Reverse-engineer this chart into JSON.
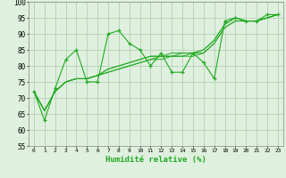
{
  "x": [
    0,
    1,
    2,
    3,
    4,
    5,
    6,
    7,
    8,
    9,
    10,
    11,
    12,
    13,
    14,
    15,
    16,
    17,
    18,
    19,
    20,
    21,
    22,
    23
  ],
  "line_main": [
    72,
    63,
    73,
    82,
    85,
    75,
    75,
    90,
    91,
    87,
    85,
    80,
    84,
    78,
    78,
    84,
    81,
    76,
    94,
    95,
    94,
    94,
    96,
    96
  ],
  "line_smooth1": [
    72,
    66,
    72,
    75,
    76,
    76,
    77,
    78,
    79,
    80,
    81,
    82,
    82,
    83,
    83,
    83,
    84,
    87,
    92,
    94,
    94,
    94,
    95,
    96
  ],
  "line_smooth2": [
    72,
    66,
    72,
    75,
    76,
    76,
    77,
    78,
    79,
    80,
    81,
    82,
    83,
    83,
    83,
    84,
    84,
    87,
    92,
    94,
    94,
    94,
    95,
    96
  ],
  "line_smooth3": [
    72,
    66,
    72,
    75,
    76,
    76,
    77,
    79,
    80,
    81,
    82,
    83,
    83,
    83,
    84,
    84,
    85,
    88,
    93,
    95,
    94,
    94,
    95,
    96
  ],
  "line_smooth4": [
    72,
    66,
    72,
    75,
    76,
    76,
    77,
    79,
    80,
    81,
    82,
    83,
    83,
    84,
    84,
    84,
    85,
    88,
    93,
    95,
    94,
    94,
    95,
    96
  ],
  "bg_color": "#dff0df",
  "grid_color": "#aaccaa",
  "line_color": "#22aa22",
  "xlabel": "Humidité relative (%)",
  "ylim": [
    55,
    100
  ],
  "xlim": [
    -0.5,
    23.5
  ],
  "yticks": [
    55,
    60,
    65,
    70,
    75,
    80,
    85,
    90,
    95,
    100
  ],
  "xticks": [
    0,
    1,
    2,
    3,
    4,
    5,
    6,
    7,
    8,
    9,
    10,
    11,
    12,
    13,
    14,
    15,
    16,
    17,
    18,
    19,
    20,
    21,
    22,
    23
  ]
}
